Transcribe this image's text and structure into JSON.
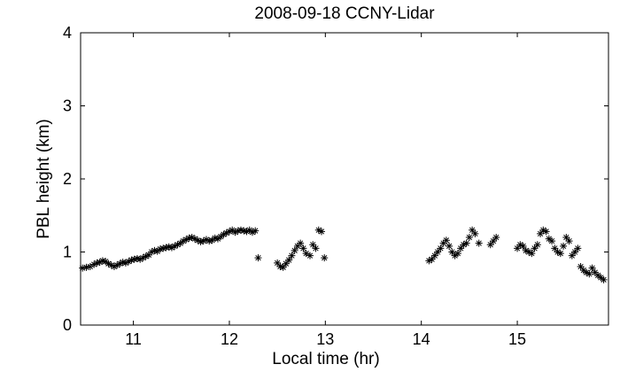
{
  "chart_data": {
    "type": "scatter",
    "title": "2008-09-18 CCNY-Lidar",
    "xlabel": "Local time (hr)",
    "ylabel": "PBL height (km)",
    "xlim": [
      10.45,
      15.95
    ],
    "ylim": [
      0,
      4
    ],
    "xticks": [
      "11",
      "12",
      "13",
      "14",
      "15"
    ],
    "yticks": [
      "0",
      "1",
      "2",
      "3",
      "4"
    ],
    "marker": "asterisk",
    "grid": false,
    "series": [
      {
        "x": [
          10.47,
          10.51,
          10.55,
          10.59,
          10.62,
          10.65,
          10.68,
          10.71,
          10.74,
          10.77,
          10.8,
          10.83,
          10.86,
          10.89,
          10.92,
          10.95,
          10.98,
          11.01,
          11.04,
          11.07,
          11.1,
          11.13,
          11.16,
          11.19,
          11.22,
          11.25,
          11.28,
          11.31,
          11.34,
          11.37,
          11.4,
          11.43,
          11.46,
          11.49,
          11.52,
          11.55,
          11.58,
          11.61,
          11.64,
          11.67,
          11.7,
          11.73,
          11.76,
          11.79,
          11.82,
          11.85,
          11.88,
          11.91,
          11.94,
          11.97,
          12.0,
          12.03,
          12.06,
          12.09,
          12.12,
          12.15,
          12.18,
          12.21,
          12.24,
          12.27,
          12.3,
          12.5,
          12.53,
          12.56,
          12.59,
          12.62,
          12.65,
          12.68,
          12.71,
          12.74,
          12.77,
          12.8,
          12.84,
          12.87,
          12.9,
          12.93,
          12.96,
          12.99,
          14.08,
          14.11,
          14.14,
          14.17,
          14.2,
          14.23,
          14.26,
          14.29,
          14.32,
          14.35,
          14.38,
          14.41,
          14.44,
          14.47,
          14.5,
          14.53,
          14.56,
          14.6,
          14.72,
          14.75,
          14.78,
          15.0,
          15.03,
          15.06,
          15.09,
          15.12,
          15.15,
          15.18,
          15.21,
          15.24,
          15.27,
          15.3,
          15.33,
          15.36,
          15.39,
          15.42,
          15.45,
          15.48,
          15.51,
          15.54,
          15.57,
          15.6,
          15.63,
          15.66,
          15.69,
          15.72,
          15.75,
          15.78,
          15.81,
          15.84,
          15.87,
          15.9
        ],
        "y": [
          0.78,
          0.79,
          0.8,
          0.83,
          0.85,
          0.86,
          0.88,
          0.87,
          0.84,
          0.82,
          0.8,
          0.82,
          0.84,
          0.86,
          0.85,
          0.87,
          0.89,
          0.9,
          0.91,
          0.9,
          0.92,
          0.94,
          0.96,
          1.0,
          1.02,
          1.01,
          1.04,
          1.05,
          1.06,
          1.07,
          1.06,
          1.08,
          1.1,
          1.12,
          1.15,
          1.17,
          1.19,
          1.2,
          1.18,
          1.16,
          1.14,
          1.15,
          1.17,
          1.15,
          1.16,
          1.19,
          1.18,
          1.21,
          1.24,
          1.26,
          1.28,
          1.3,
          1.27,
          1.29,
          1.3,
          1.29,
          1.28,
          1.3,
          1.27,
          1.29,
          0.92,
          0.85,
          0.8,
          0.79,
          0.84,
          0.89,
          0.95,
          1.02,
          1.08,
          1.12,
          1.05,
          0.98,
          0.95,
          1.1,
          1.05,
          1.3,
          1.28,
          0.92,
          0.88,
          0.9,
          0.95,
          1.0,
          1.05,
          1.12,
          1.16,
          1.08,
          1.0,
          0.95,
          0.98,
          1.05,
          1.1,
          1.12,
          1.2,
          1.3,
          1.25,
          1.12,
          1.1,
          1.15,
          1.2,
          1.05,
          1.1,
          1.08,
          1.02,
          1.0,
          0.98,
          1.05,
          1.1,
          1.25,
          1.3,
          1.28,
          1.18,
          1.15,
          1.05,
          1.0,
          0.98,
          1.08,
          1.2,
          1.15,
          0.95,
          1.0,
          1.05,
          0.8,
          0.75,
          0.72,
          0.7,
          0.78,
          0.72,
          0.68,
          0.65,
          0.62
        ]
      }
    ]
  }
}
